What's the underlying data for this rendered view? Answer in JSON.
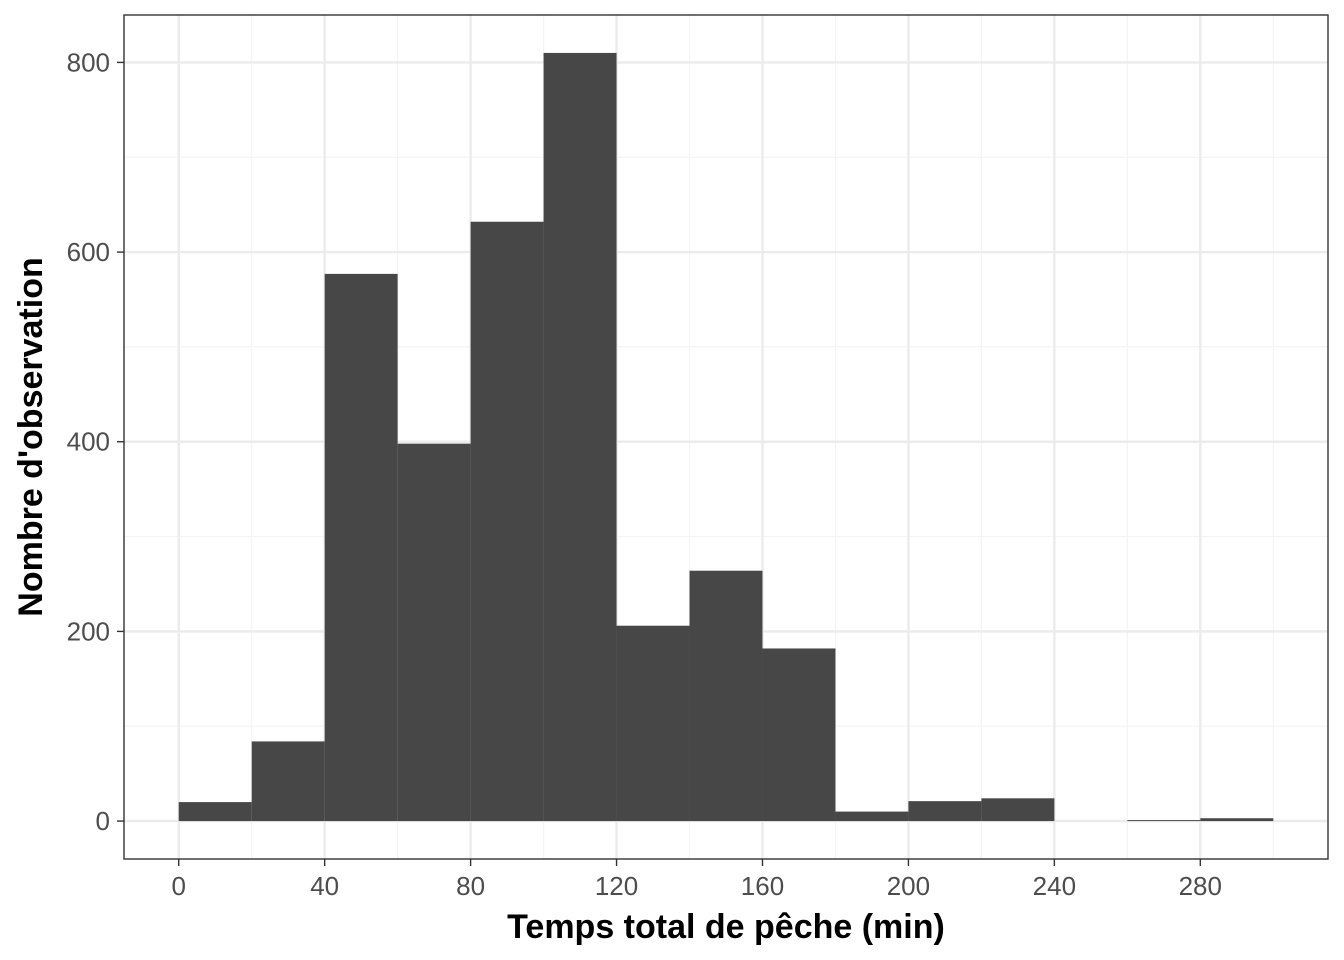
{
  "chart_data": {
    "type": "bar",
    "xlabel": "Temps total de pêche (min)",
    "ylabel": "Nombre d'observation",
    "bin_edges": [
      0,
      20,
      40,
      60,
      80,
      100,
      120,
      140,
      160,
      180,
      200,
      220,
      240,
      260,
      280,
      300
    ],
    "values": [
      20,
      84,
      577,
      398,
      632,
      810,
      206,
      264,
      182,
      10,
      21,
      24,
      0,
      1,
      3
    ],
    "xlim": [
      -15,
      315
    ],
    "ylim": [
      -40,
      850
    ],
    "x_ticks": [
      0,
      40,
      80,
      120,
      160,
      200,
      240,
      280
    ],
    "x_minor_ticks": [
      20,
      60,
      100,
      140,
      180,
      220,
      260,
      300
    ],
    "y_ticks": [
      0,
      200,
      400,
      600,
      800
    ],
    "y_minor_ticks": [
      100,
      300,
      500,
      700
    ],
    "grid": true,
    "colors": {
      "bar": "#474747",
      "grid_major": "#ebebeb",
      "grid_minor": "#f4f4f4",
      "panel_border": "#333333",
      "tick_text": "#4d4d4d"
    }
  }
}
